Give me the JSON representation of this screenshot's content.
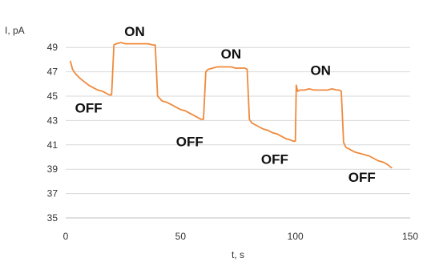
{
  "chart_data": {
    "type": "line",
    "xlabel": "t, s",
    "ylabel": "I, pA",
    "xlim": [
      0,
      150
    ],
    "ylim": [
      35,
      50
    ],
    "xticks": [
      0,
      50,
      100,
      150
    ],
    "yticks": [
      35,
      37,
      39,
      41,
      43,
      45,
      47,
      49
    ],
    "grid": "horizontal",
    "series": [
      {
        "color": "#f08a3c",
        "x": [
          2,
          3,
          4,
          6,
          8,
          10,
          12,
          14,
          16,
          18,
          19,
          20,
          21,
          22,
          24,
          26,
          28,
          30,
          32,
          34,
          36,
          38,
          39,
          40,
          41,
          42,
          44,
          46,
          48,
          50,
          52,
          54,
          56,
          58,
          59,
          60,
          61,
          62,
          64,
          66,
          68,
          70,
          72,
          74,
          76,
          78,
          79,
          80,
          81,
          82,
          84,
          86,
          88,
          90,
          92,
          94,
          96,
          98,
          99,
          100,
          100.4,
          101,
          102,
          104,
          106,
          108,
          110,
          112,
          114,
          116,
          118,
          119,
          120,
          121,
          122,
          124,
          126,
          128,
          130,
          132,
          134,
          136,
          138,
          140,
          142
        ],
        "y": [
          47.9,
          47.2,
          46.9,
          46.5,
          46.2,
          45.9,
          45.7,
          45.5,
          45.4,
          45.2,
          45.1,
          45.1,
          49.2,
          49.3,
          49.4,
          49.3,
          49.3,
          49.3,
          49.3,
          49.3,
          49.3,
          49.2,
          49.2,
          45.0,
          44.8,
          44.6,
          44.5,
          44.3,
          44.1,
          43.9,
          43.8,
          43.6,
          43.4,
          43.2,
          43.1,
          43.1,
          47.0,
          47.2,
          47.3,
          47.4,
          47.4,
          47.4,
          47.4,
          47.3,
          47.3,
          47.3,
          47.2,
          43.1,
          42.8,
          42.7,
          42.5,
          42.3,
          42.2,
          42.0,
          41.9,
          41.7,
          41.5,
          41.4,
          41.3,
          41.3,
          45.9,
          45.4,
          45.5,
          45.5,
          45.6,
          45.5,
          45.5,
          45.5,
          45.5,
          45.6,
          45.5,
          45.5,
          45.4,
          41.2,
          40.8,
          40.6,
          40.4,
          40.3,
          40.2,
          40.1,
          39.9,
          39.7,
          39.6,
          39.4,
          39.1
        ]
      }
    ],
    "annotations": [
      {
        "text": "ON",
        "x": 30,
        "y": 49.95
      },
      {
        "text": "ON",
        "x": 72,
        "y": 48.1
      },
      {
        "text": "ON",
        "x": 111,
        "y": 46.75
      },
      {
        "text": "OFF",
        "x": 10,
        "y": 43.65
      },
      {
        "text": "OFF",
        "x": 54,
        "y": 40.9
      },
      {
        "text": "OFF",
        "x": 91,
        "y": 39.45
      },
      {
        "text": "OFF",
        "x": 129,
        "y": 37.95
      }
    ]
  }
}
